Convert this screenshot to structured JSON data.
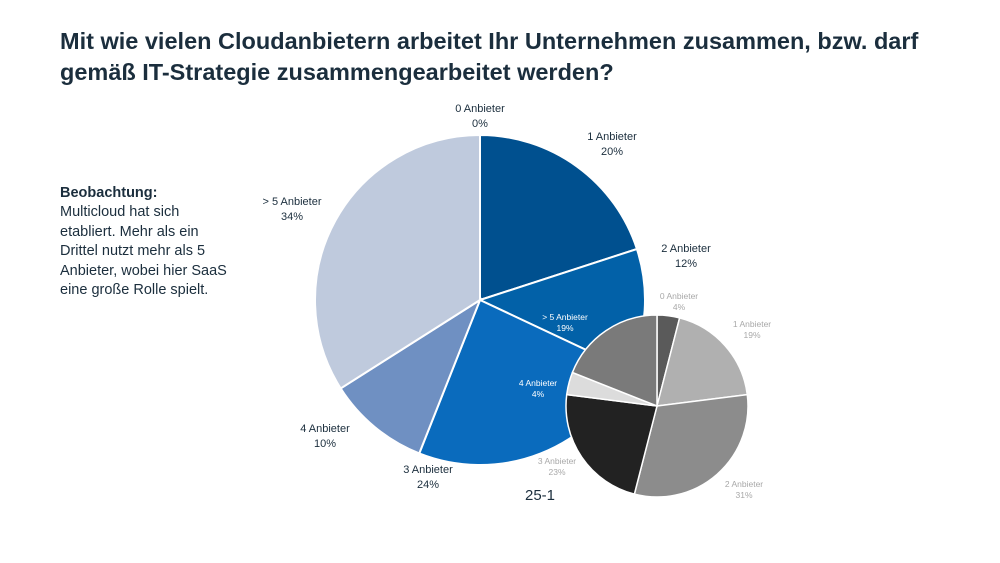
{
  "title": "Mit wie vielen Cloudanbietern arbeitet Ihr Unternehmen zusammen, bzw. darf gemäß IT-Strategie zusammengearbeitet werden?",
  "observation": {
    "heading": "Beobachtung:",
    "text": "Multicloud hat sich etabliert. Mehr als ein Drittel nutzt mehr als 5 Anbieter, wobei hier SaaS eine große Rolle spielt."
  },
  "footer_code": "25-1",
  "chart_data": [
    {
      "type": "pie",
      "categories": [
        "0 Anbieter",
        "1 Anbieter",
        "2 Anbieter",
        "3 Anbieter",
        "4 Anbieter",
        "> 5 Anbieter"
      ],
      "values": [
        0,
        20,
        12,
        24,
        10,
        34
      ],
      "value_labels": [
        "0%",
        "20%",
        "12%",
        "24%",
        "10%",
        "34%"
      ],
      "colors": [
        "#003f7f",
        "#00508f",
        "#0261a8",
        "#0a6bbd",
        "#6f90c2",
        "#bfcadd"
      ]
    },
    {
      "type": "pie",
      "categories": [
        "0 Anbieter",
        "1 Anbieter",
        "2 Anbieter",
        "3 Anbieter",
        "4 Anbieter",
        "> 5 Anbieter"
      ],
      "values": [
        4,
        19,
        31,
        23,
        4,
        19
      ],
      "value_labels": [
        "4%",
        "19%",
        "31%",
        "23%",
        "4%",
        "19%"
      ],
      "colors": [
        "#5a5a5a",
        "#b0b0b0",
        "#8c8c8c",
        "#222222",
        "#dcdcdc",
        "#7a7a7a"
      ]
    }
  ]
}
